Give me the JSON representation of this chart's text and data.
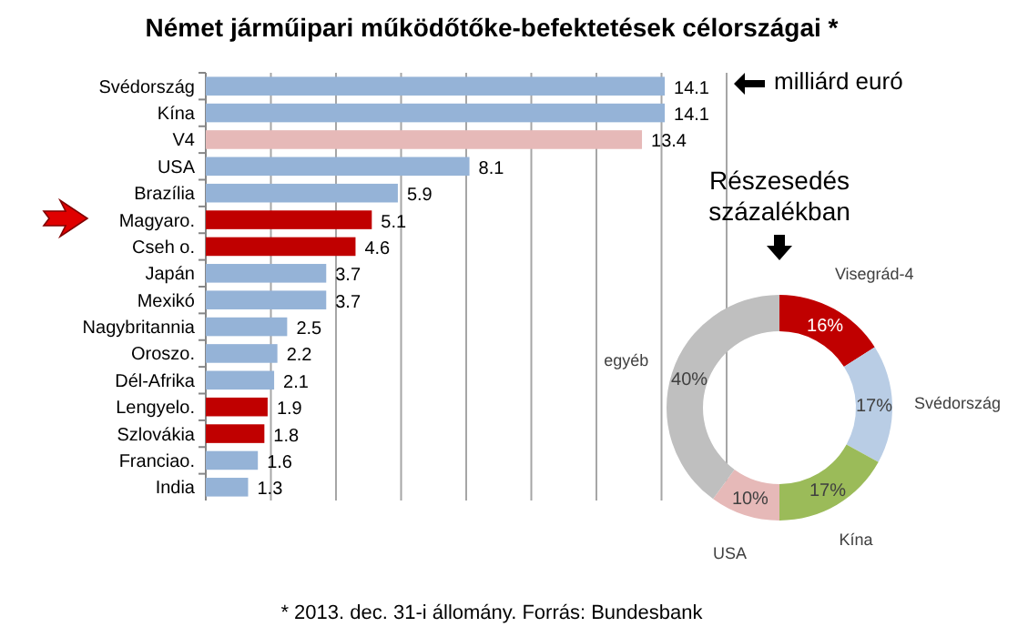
{
  "chart_data": [
    {
      "type": "bar",
      "orientation": "horizontal",
      "title": "Német járműipari működőtőke-befektetések célországai *",
      "categories": [
        "Svédország",
        "Kína",
        "V4",
        "USA",
        "Brazília",
        "Magyaro.",
        "Cseh o.",
        "Japán",
        "Mexikó",
        "Nagybritannia",
        "Oroszo.",
        "Dél-Afrika",
        "Lengyelo.",
        "Szlovákia",
        "Franciao.",
        "India"
      ],
      "values": [
        14.1,
        14.1,
        13.4,
        8.1,
        5.9,
        5.1,
        4.6,
        3.7,
        3.7,
        2.5,
        2.2,
        2.1,
        1.9,
        1.8,
        1.6,
        1.3
      ],
      "colors": [
        "#95b3d7",
        "#95b3d7",
        "#e6b9b8",
        "#95b3d7",
        "#95b3d7",
        "#c00000",
        "#c00000",
        "#95b3d7",
        "#95b3d7",
        "#95b3d7",
        "#95b3d7",
        "#95b3d7",
        "#c00000",
        "#c00000",
        "#95b3d7",
        "#95b3d7"
      ],
      "xlim": [
        0,
        16
      ],
      "xticks": [
        {
          "value": 0,
          "label": null
        },
        {
          "value": 2,
          "label": null
        },
        {
          "value": 4,
          "label": null
        },
        {
          "value": 6,
          "label": null
        },
        {
          "value": 8,
          "label": null
        },
        {
          "value": 10,
          "label": null
        },
        {
          "value": 12,
          "label": null
        },
        {
          "value": 14,
          "label": null
        },
        {
          "value": 16,
          "label": null
        }
      ],
      "tick_labels": "y",
      "grid": "x",
      "data_labels": true,
      "annotations": [
        "milliárd euró",
        "* 2013. dec. 31-i állomány. Forrás: Bundesbank"
      ]
    },
    {
      "type": "donut",
      "title": "Részesedés százalékban",
      "categories": [
        "Visegrád-4",
        "Svédország",
        "Kína",
        "USA",
        "egyéb"
      ],
      "values": [
        16,
        17,
        17,
        10,
        40
      ],
      "colors": [
        "#c00000",
        "#b9cde5",
        "#9bbb59",
        "#e6b9b8",
        "#bfbfbf"
      ],
      "value_labels": [
        "16%",
        "17%",
        "17%",
        "10%",
        "40%"
      ]
    }
  ]
}
